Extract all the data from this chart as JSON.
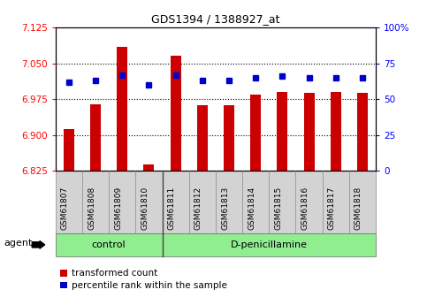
{
  "title": "GDS1394 / 1388927_at",
  "samples": [
    "GSM61807",
    "GSM61808",
    "GSM61809",
    "GSM61810",
    "GSM61811",
    "GSM61812",
    "GSM61813",
    "GSM61814",
    "GSM61815",
    "GSM61816",
    "GSM61817",
    "GSM61818"
  ],
  "transformed_count": [
    6.912,
    6.965,
    7.085,
    6.838,
    7.065,
    6.963,
    6.962,
    6.985,
    6.99,
    6.988,
    6.99,
    6.988
  ],
  "percentile_rank": [
    62,
    63,
    67,
    60,
    67,
    63,
    63,
    65,
    66,
    65,
    65,
    65
  ],
  "ylim_left": [
    6.825,
    7.125
  ],
  "ylim_right": [
    0,
    100
  ],
  "yticks_left": [
    6.825,
    6.9,
    6.975,
    7.05,
    7.125
  ],
  "yticks_right": [
    0,
    25,
    50,
    75,
    100
  ],
  "ytick_right_labels": [
    "0",
    "25",
    "50",
    "75",
    "100%"
  ],
  "bar_color": "#cc0000",
  "dot_color": "#0000cc",
  "control_count": 4,
  "group_label_control": "control",
  "group_label_dpenicillamine": "D-penicillamine",
  "agent_label": "agent",
  "legend_bar_label": "transformed count",
  "legend_dot_label": "percentile rank within the sample",
  "tick_bg_color": "#d3d3d3",
  "group_bg_color": "#90ee90",
  "bar_width": 0.4
}
